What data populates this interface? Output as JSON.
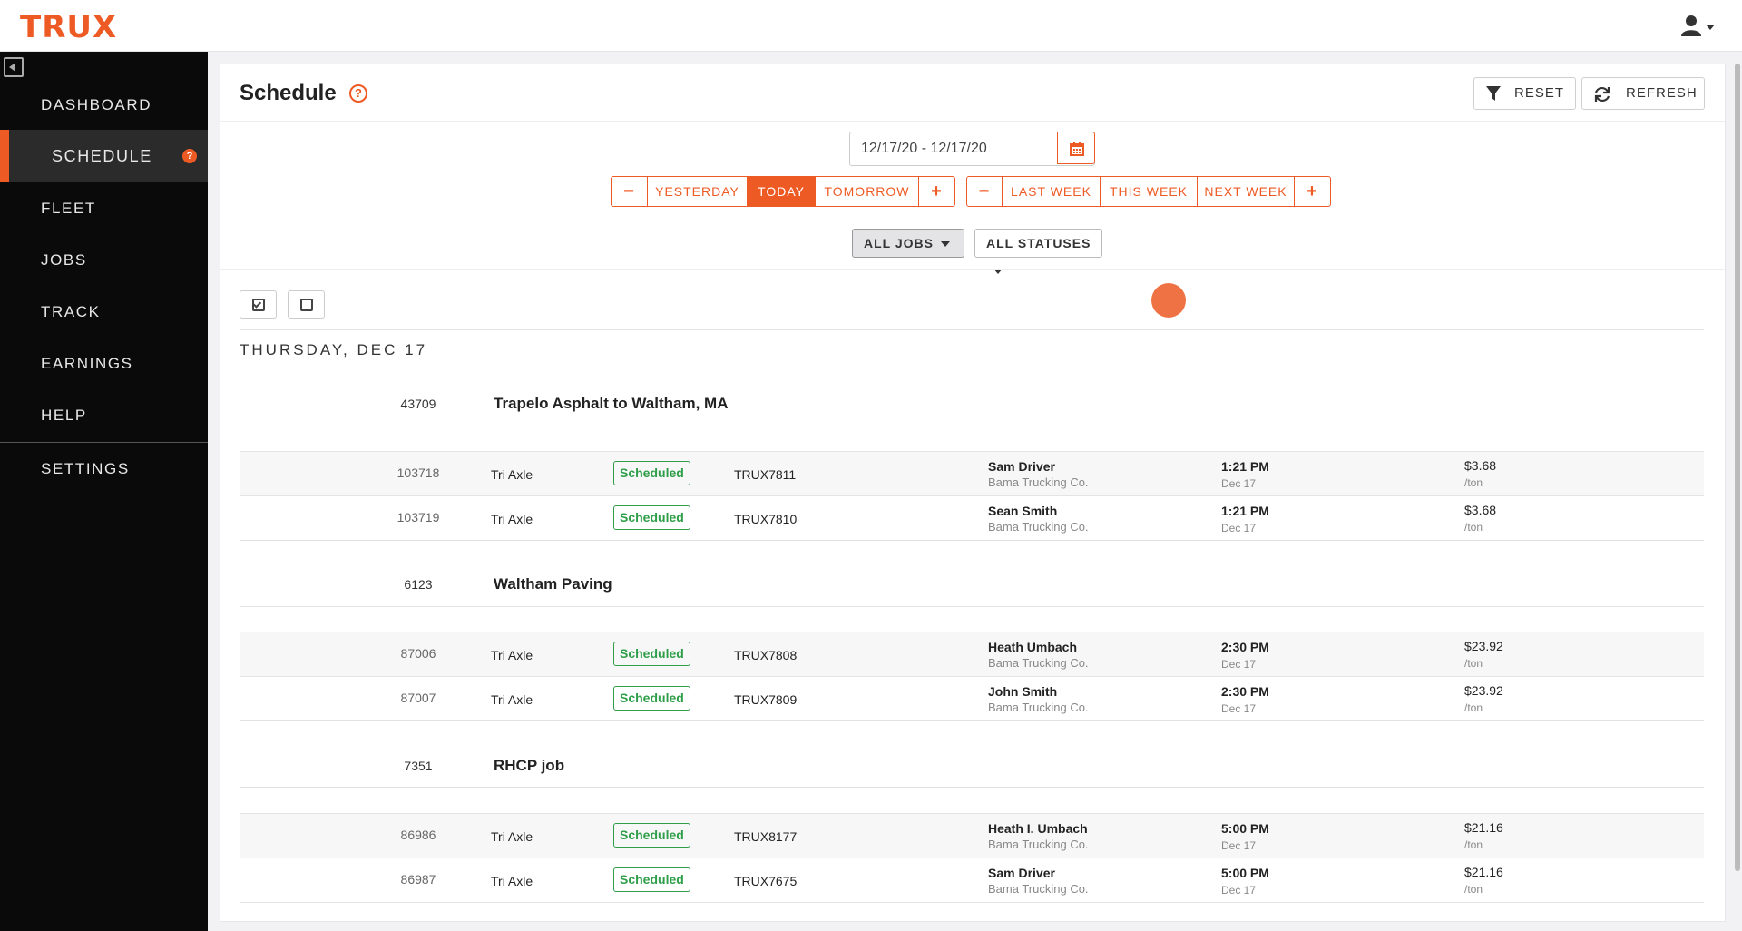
{
  "app": {
    "logo": "TRUX"
  },
  "sidebar": {
    "items": [
      {
        "label": "DASHBOARD"
      },
      {
        "label": "SCHEDULE",
        "help": "?"
      },
      {
        "label": "FLEET"
      },
      {
        "label": "JOBS"
      },
      {
        "label": "TRACK"
      },
      {
        "label": "EARNINGS"
      },
      {
        "label": "HELP"
      },
      {
        "label": "SETTINGS"
      }
    ],
    "active": "SCHEDULE"
  },
  "header": {
    "title": "Schedule",
    "help": "?",
    "reset_label": "RESET",
    "refresh_label": "REFRESH"
  },
  "filters": {
    "date_range": "12/17/20  -  12/17/20",
    "day_buttons": {
      "minus": "−",
      "yesterday": "YESTERDAY",
      "today": "TODAY",
      "tomorrow": "TOMORROW",
      "plus": "+"
    },
    "week_buttons": {
      "minus": "−",
      "last_week": "LAST WEEK",
      "this_week": "THIS WEEK",
      "next_week": "NEXT WEEK",
      "plus": "+"
    },
    "jobs_dropdown": "ALL JOBS",
    "status_dropdown": "ALL STATUSES",
    "selected_day_button": "TODAY"
  },
  "schedule": {
    "day_heading": "THURSDAY, DEC 17",
    "groups": [
      {
        "id": "43709",
        "name": "Trapelo Asphalt to Waltham, MA",
        "rows": [
          {
            "id": "103718",
            "type": "Tri Axle",
            "status": "Scheduled",
            "truck": "TRUX7811",
            "driver": "Sam Driver",
            "company": "Bama Trucking Co.",
            "time": "1:21 PM",
            "date": "Dec 17",
            "rate": "$3.68",
            "unit": "/ton"
          },
          {
            "id": "103719",
            "type": "Tri Axle",
            "status": "Scheduled",
            "truck": "TRUX7810",
            "driver": "Sean Smith",
            "company": "Bama Trucking Co.",
            "time": "1:21 PM",
            "date": "Dec 17",
            "rate": "$3.68",
            "unit": "/ton"
          }
        ]
      },
      {
        "id": "6123",
        "name": "Waltham Paving",
        "rows": [
          {
            "id": "87006",
            "type": "Tri Axle",
            "status": "Scheduled",
            "truck": "TRUX7808",
            "driver": "Heath Umbach",
            "company": "Bama Trucking Co.",
            "time": "2:30 PM",
            "date": "Dec 17",
            "rate": "$23.92",
            "unit": "/ton"
          },
          {
            "id": "87007",
            "type": "Tri Axle",
            "status": "Scheduled",
            "truck": "TRUX7809",
            "driver": "John Smith",
            "company": "Bama Trucking Co.",
            "time": "2:30 PM",
            "date": "Dec 17",
            "rate": "$23.92",
            "unit": "/ton"
          }
        ]
      },
      {
        "id": "7351",
        "name": "RHCP job",
        "rows": [
          {
            "id": "86986",
            "type": "Tri Axle",
            "status": "Scheduled",
            "truck": "TRUX8177",
            "driver": "Heath I. Umbach",
            "company": "Bama Trucking Co.",
            "time": "5:00 PM",
            "date": "Dec 17",
            "rate": "$21.16",
            "unit": "/ton"
          },
          {
            "id": "86987",
            "type": "Tri Axle",
            "status": "Scheduled",
            "truck": "TRUX7675",
            "driver": "Sam Driver",
            "company": "Bama Trucking Co.",
            "time": "5:00 PM",
            "date": "Dec 17",
            "rate": "$21.16",
            "unit": "/ton"
          }
        ]
      }
    ]
  },
  "colors": {
    "accent": "#ee5a24",
    "status_scheduled": "#2e9e48",
    "sidebar_bg": "#0a0a0a"
  },
  "icons": [
    "user-icon",
    "collapse-sidebar-icon",
    "help-icon",
    "filter-icon",
    "refresh-icon",
    "calendar-icon",
    "check-all-icon",
    "uncheck-all-icon"
  ]
}
